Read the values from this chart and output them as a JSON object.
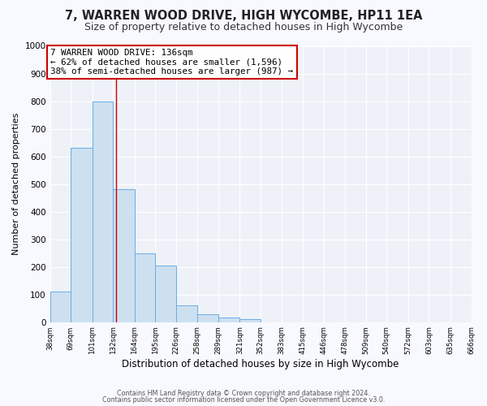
{
  "title": "7, WARREN WOOD DRIVE, HIGH WYCOMBE, HP11 1EA",
  "subtitle": "Size of property relative to detached houses in High Wycombe",
  "xlabel": "Distribution of detached houses by size in High Wycombe",
  "ylabel": "Number of detached properties",
  "bin_edges": [
    38,
    69,
    101,
    132,
    164,
    195,
    226,
    258,
    289,
    321,
    352,
    383,
    415,
    446,
    478,
    509,
    540,
    572,
    603,
    635,
    666
  ],
  "bar_heights": [
    110,
    630,
    800,
    480,
    250,
    205,
    60,
    28,
    18,
    10,
    0,
    0,
    0,
    0,
    0,
    0,
    0,
    0,
    0,
    0
  ],
  "bar_color": "#cce0f0",
  "bar_edgecolor": "#6aade4",
  "property_size": 136,
  "annotation_title": "7 WARREN WOOD DRIVE: 136sqm",
  "annotation_line1": "← 62% of detached houses are smaller (1,596)",
  "annotation_line2": "38% of semi-detached houses are larger (987) →",
  "annotation_box_color": "#cc0000",
  "vline_color": "#cc0000",
  "ylim": [
    0,
    1000
  ],
  "yticks": [
    0,
    100,
    200,
    300,
    400,
    500,
    600,
    700,
    800,
    900,
    1000
  ],
  "background_color": "#eef2f8",
  "fig_background_color": "#f8f9ff",
  "footer_line1": "Contains HM Land Registry data © Crown copyright and database right 2024.",
  "footer_line2": "Contains public sector information licensed under the Open Government Licence v3.0.",
  "title_fontsize": 10.5,
  "subtitle_fontsize": 9
}
